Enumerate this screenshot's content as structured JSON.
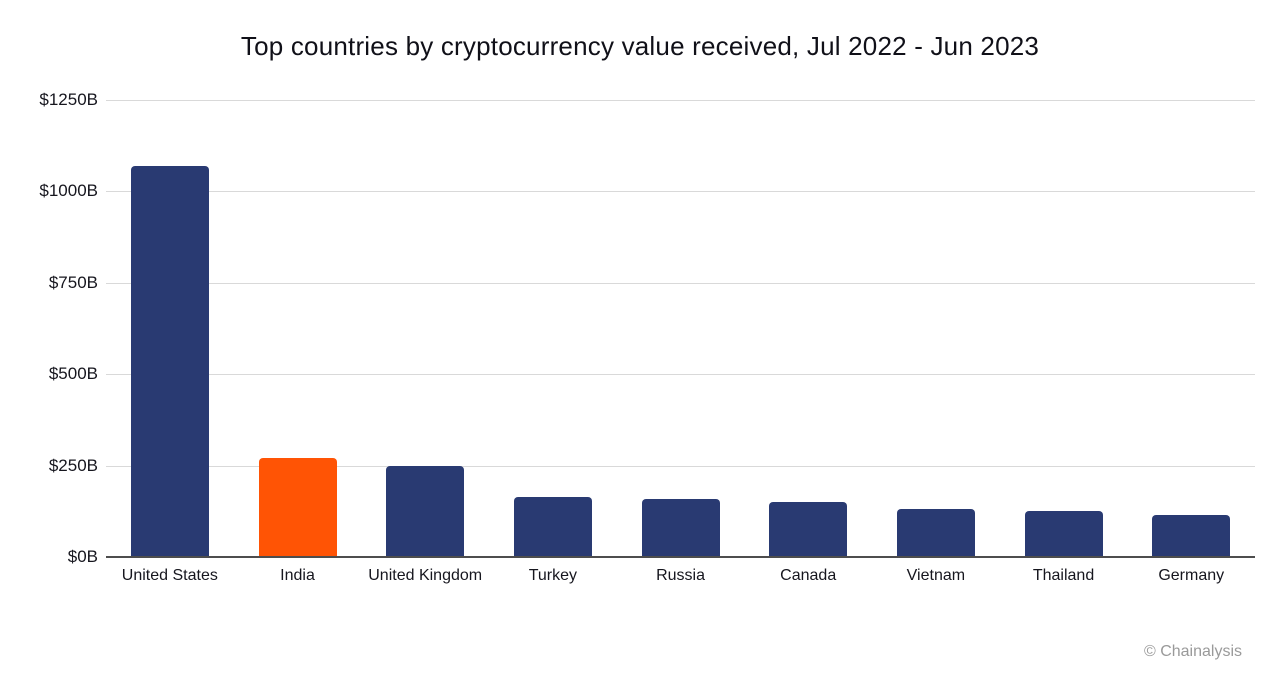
{
  "credit": "© Chainalysis",
  "chart_data": {
    "type": "bar",
    "title": "Top countries by cryptocurrency value received, Jul 2022 - Jun 2023",
    "categories": [
      "United States",
      "India",
      "United Kingdom",
      "Turkey",
      "Russia",
      "Canada",
      "Vietnam",
      "Thailand",
      "Germany"
    ],
    "values": [
      1070,
      270,
      250,
      165,
      160,
      150,
      130,
      125,
      115
    ],
    "value_unit": "USD billions",
    "xlabel": "",
    "ylabel": "",
    "ylim": [
      0,
      1250
    ],
    "yticks": [
      0,
      250,
      500,
      750,
      1000,
      1250
    ],
    "ytick_labels": [
      "$0B",
      "$250B",
      "$500B",
      "$750B",
      "$1000B",
      "$1250B"
    ],
    "grid": true,
    "legend": false,
    "bar_color": "#293a72",
    "highlight_category": "India",
    "highlight_color": "#ff5405"
  }
}
